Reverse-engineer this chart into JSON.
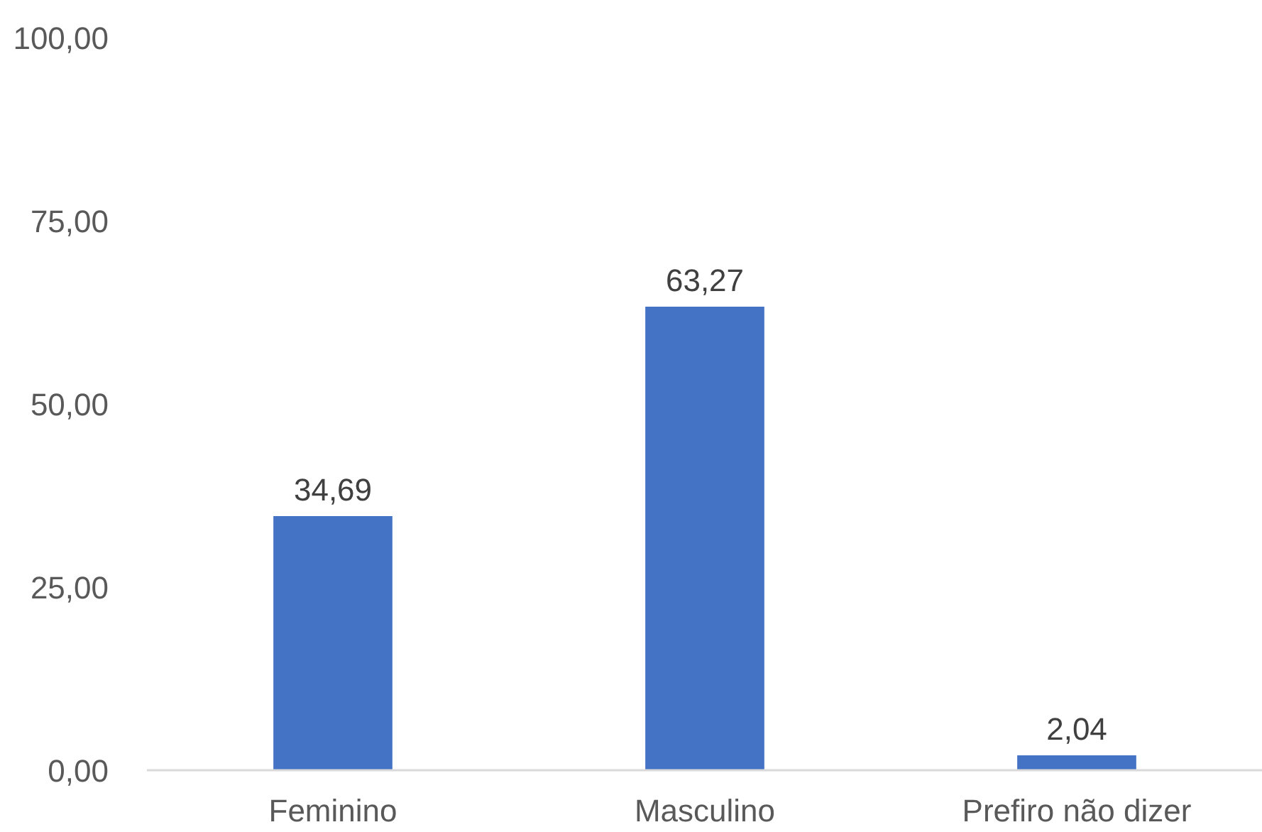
{
  "chart_data": {
    "type": "bar",
    "categories": [
      "Feminino",
      "Masculino",
      "Prefiro não dizer"
    ],
    "values": [
      34.69,
      63.27,
      2.04
    ],
    "color": "#4472c4",
    "value_labels": [
      "34,69",
      "63,27",
      "2,04"
    ],
    "ylim": [
      0,
      100
    ],
    "yticks": [
      {
        "value": 0,
        "label": "0,00"
      },
      {
        "value": 25,
        "label": "25,00"
      },
      {
        "value": 50,
        "label": "50,00"
      },
      {
        "value": 75,
        "label": "75,00"
      },
      {
        "value": 100,
        "label": "100,00"
      }
    ]
  }
}
